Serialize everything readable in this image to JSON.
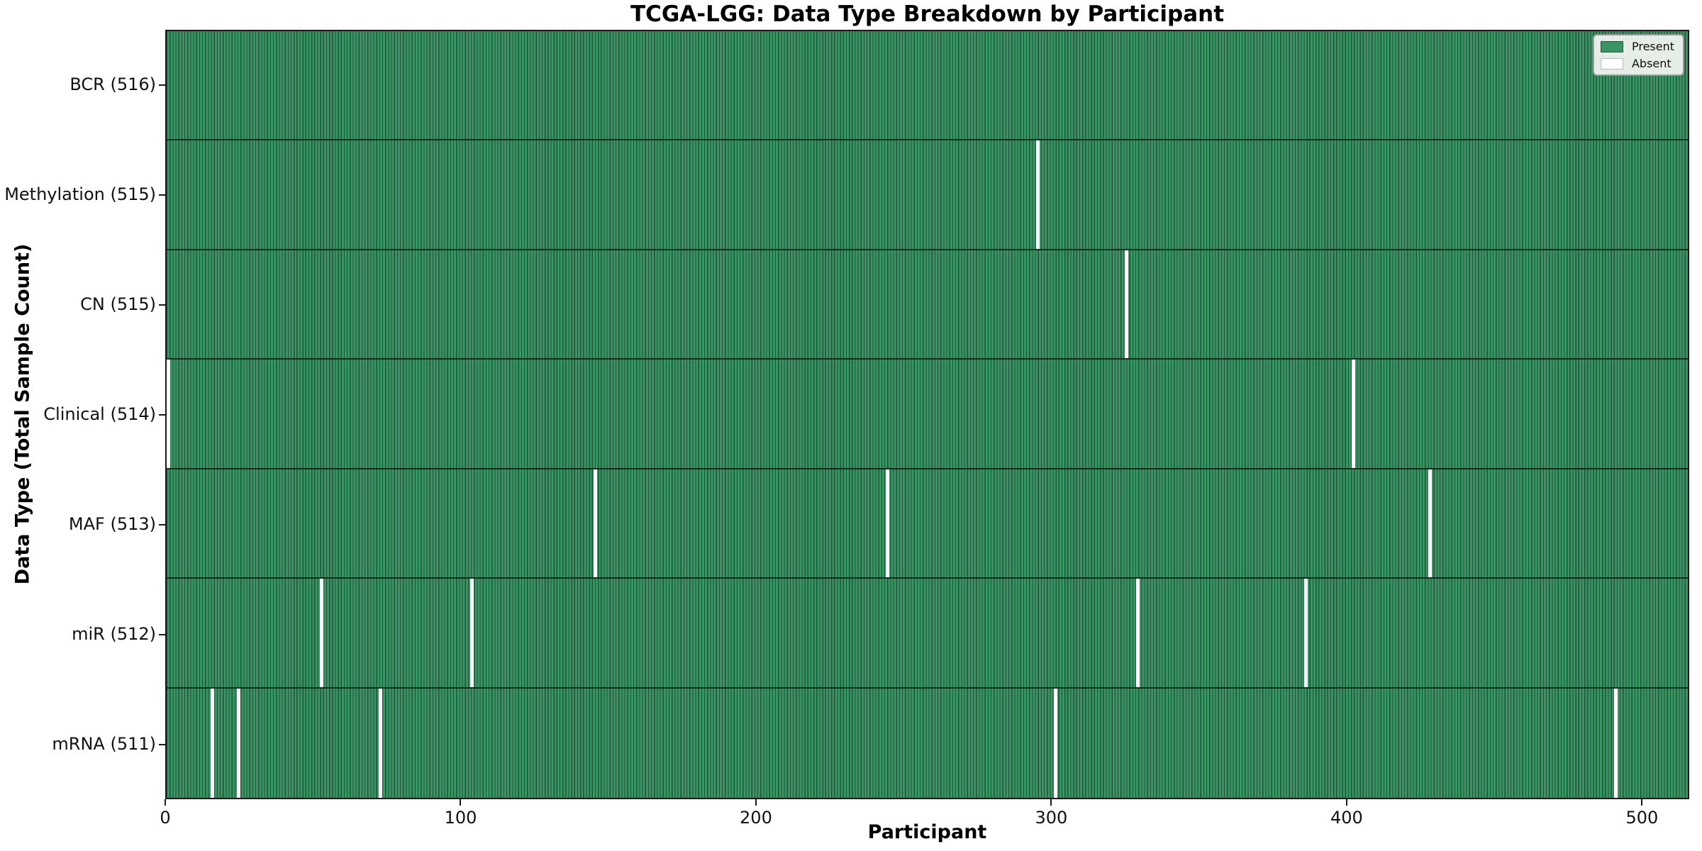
{
  "chart_data": {
    "type": "heatmap",
    "title": "TCGA-LGG: Data Type Breakdown by Participant",
    "xlabel": "Participant",
    "ylabel": "Data Type (Total Sample Count)",
    "x_range": [
      0,
      516
    ],
    "x_ticks": [
      0,
      100,
      200,
      300,
      400,
      500
    ],
    "grid": false,
    "legend_position": "upper-right",
    "legend": [
      {
        "label": "Present",
        "color": "#3a9464"
      },
      {
        "label": "Absent",
        "color": "#ffffff"
      }
    ],
    "rows": [
      {
        "label": "BCR (516)",
        "data_type": "BCR",
        "total_samples": 516,
        "absent_participants": []
      },
      {
        "label": "Methylation (515)",
        "data_type": "Methylation",
        "total_samples": 515,
        "absent_participants": [
          295
        ]
      },
      {
        "label": "CN (515)",
        "data_type": "CN",
        "total_samples": 515,
        "absent_participants": [
          325
        ]
      },
      {
        "label": "Clinical (514)",
        "data_type": "Clinical",
        "total_samples": 514,
        "absent_participants": [
          0,
          402
        ]
      },
      {
        "label": "MAF (513)",
        "data_type": "MAF",
        "total_samples": 513,
        "absent_participants": [
          145,
          244,
          428
        ]
      },
      {
        "label": "miR (512)",
        "data_type": "miR",
        "total_samples": 512,
        "absent_participants": [
          52,
          103,
          329,
          386
        ]
      },
      {
        "label": "mRNA (511)",
        "data_type": "mRNA",
        "total_samples": 511,
        "absent_participants": [
          15,
          24,
          72,
          301,
          491
        ]
      }
    ],
    "colors": {
      "present_fill": "#3a9464",
      "bar_edge": "#1e5537",
      "absent_fill": "#ffffff",
      "row_separator": "#10301d",
      "spine": "#1a1a1a"
    }
  }
}
